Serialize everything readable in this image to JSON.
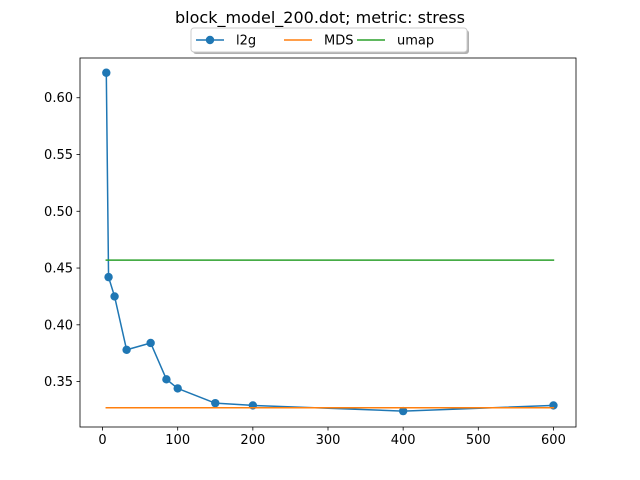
{
  "chart_data": {
    "type": "line",
    "title": "block_model_200.dot; metric: stress",
    "xlabel": "",
    "ylabel": "",
    "xlim": [
      -30,
      630
    ],
    "ylim": [
      0.31,
      0.635
    ],
    "xticks": [
      0,
      100,
      200,
      300,
      400,
      500,
      600
    ],
    "yticks": [
      0.35,
      0.4,
      0.45,
      0.5,
      0.55,
      0.6
    ],
    "xtick_labels": [
      "0",
      "100",
      "200",
      "300",
      "400",
      "500",
      "600"
    ],
    "ytick_labels": [
      "0.35",
      "0.40",
      "0.45",
      "0.50",
      "0.55",
      "0.60"
    ],
    "grid": false,
    "legend_position": "top-center",
    "series": [
      {
        "name": "l2g",
        "color": "#1f77b4",
        "marker": "circle",
        "x": [
          5,
          8,
          16,
          32,
          64,
          85,
          100,
          150,
          200,
          400,
          600
        ],
        "y": [
          0.622,
          0.442,
          0.425,
          0.378,
          0.384,
          0.352,
          0.344,
          0.331,
          0.329,
          0.324,
          0.329
        ]
      },
      {
        "name": "MDS",
        "color": "#ff7f0e",
        "marker": "none",
        "x": [
          5,
          600
        ],
        "y": [
          0.327,
          0.327
        ]
      },
      {
        "name": "umap",
        "color": "#2ca02c",
        "marker": "none",
        "x": [
          5,
          600
        ],
        "y": [
          0.457,
          0.457
        ]
      }
    ]
  }
}
